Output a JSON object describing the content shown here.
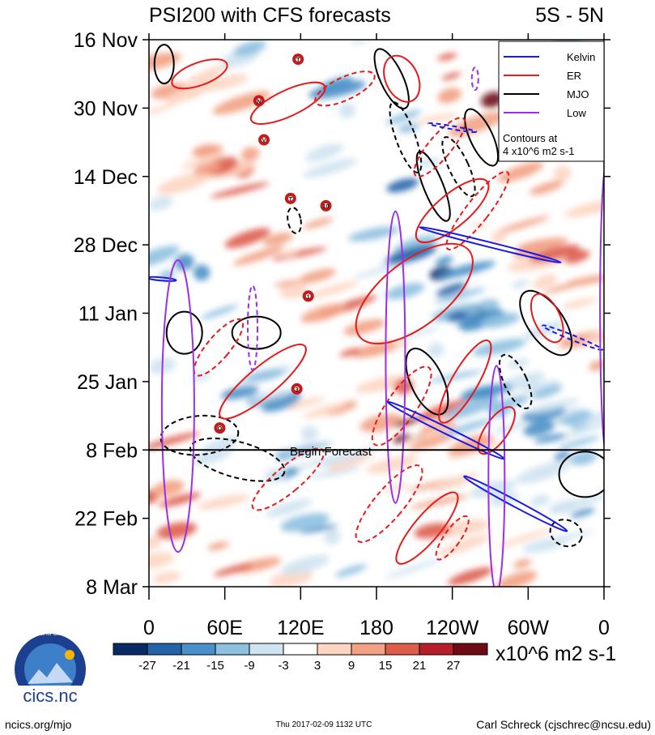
{
  "chart_data": {
    "type": "heatmap",
    "title": "PSI200 with CFS forecasts",
    "region": "5S - 5N",
    "x_ticks": [
      "0",
      "60E",
      "120E",
      "180",
      "120W",
      "60W",
      "0"
    ],
    "x_values": [
      0,
      60,
      120,
      180,
      240,
      300,
      360
    ],
    "xlim": [
      0,
      360
    ],
    "y_ticks": [
      "16 Nov",
      "30 Nov",
      "14 Dec",
      "28 Dec",
      "11 Jan",
      "25 Jan",
      "8 Feb",
      "22 Feb",
      "8 Mar"
    ],
    "y_days": [
      0,
      14,
      28,
      42,
      56,
      70,
      84,
      98,
      112
    ],
    "ylim": [
      0,
      112
    ],
    "forecast_start_day": 84,
    "forecast_label": "Begin Forecast",
    "colorbar": {
      "levels": [
        "-27",
        "-21",
        "-15",
        "-9",
        "-3",
        "3",
        "9",
        "15",
        "21",
        "27"
      ],
      "colors": [
        "#0a2a66",
        "#2563a8",
        "#4a90c8",
        "#8ec0e0",
        "#cfe3f1",
        "#ffffff",
        "#fdd5c2",
        "#f2a184",
        "#de5c4c",
        "#b51f2a",
        "#6e0b14"
      ],
      "units": "x10^6 m2 s-1"
    },
    "legend": [
      {
        "name": "Kelvin",
        "color": "#1a1ae6"
      },
      {
        "name": "ER",
        "color": "#e61a1a"
      },
      {
        "name": "MJO",
        "color": "#000000"
      },
      {
        "name": "Low",
        "color": "#9b30e0"
      }
    ],
    "legend_note": [
      "Contours at",
      "4 x10^6 m2 s-1"
    ],
    "storms": [
      {
        "label": "T",
        "lon": 118,
        "day": 4
      },
      {
        "label": "N",
        "lon": 87,
        "day": 12.5
      },
      {
        "label": "V",
        "lon": 91,
        "day": 20.5
      },
      {
        "label": "T",
        "lon": 112,
        "day": 32.5
      },
      {
        "label": "10",
        "lon": 140,
        "day": 34
      },
      {
        "label": "1",
        "lon": 126,
        "day": 52.5
      },
      {
        "label": "3",
        "lon": 117,
        "day": 71.5
      },
      {
        "label": "O",
        "lon": 56,
        "day": 79.5
      }
    ]
  },
  "footer": {
    "logo_text": "cics.nc",
    "logo_ring_text": "Cooperative Institute for Climate and Satellites",
    "site": "ncics.org/mjo",
    "timestamp": "Thu 2017-02-09 1132 UTC",
    "author": "Carl Schreck (cjschrec@ncsu.edu)"
  }
}
